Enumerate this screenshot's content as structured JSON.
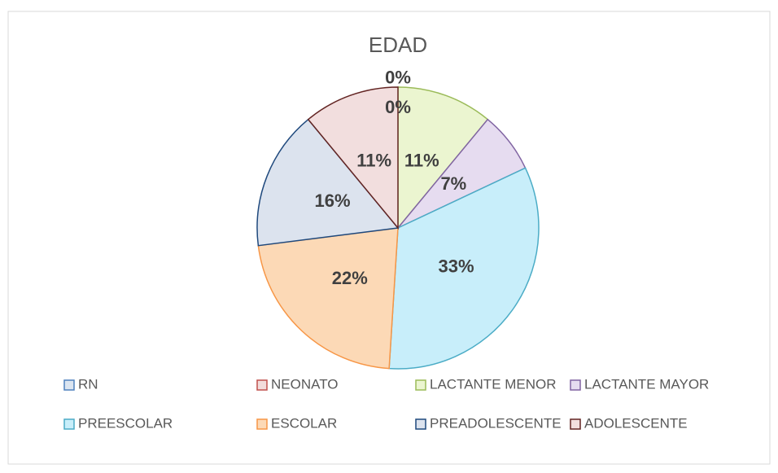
{
  "chart_data": {
    "type": "pie",
    "title": "EDAD",
    "categories": [
      "RN",
      "NEONATO",
      "LACTANTE MENOR",
      "LACTANTE MAYOR",
      "PREESCOLAR",
      "ESCOLAR",
      "PREADOLESCENTE",
      "ADOLESCENTE"
    ],
    "values": [
      0,
      0,
      11,
      7,
      33,
      22,
      16,
      11
    ],
    "value_labels": [
      "0%",
      "0%",
      "11%",
      "7%",
      "33%",
      "22%",
      "16%",
      "11%"
    ],
    "colors": [
      "#dbe5f1",
      "#f2dcdb",
      "#ebf5d0",
      "#e6dcf0",
      "#c8eefa",
      "#fcd9b6",
      "#dce3ee",
      "#f2dede"
    ],
    "edge_colors": [
      "#4f81bd",
      "#c0504d",
      "#9bbb59",
      "#8064a2",
      "#4bacc6",
      "#f79646",
      "#1f497d",
      "#632523"
    ],
    "legend": "bottom"
  }
}
